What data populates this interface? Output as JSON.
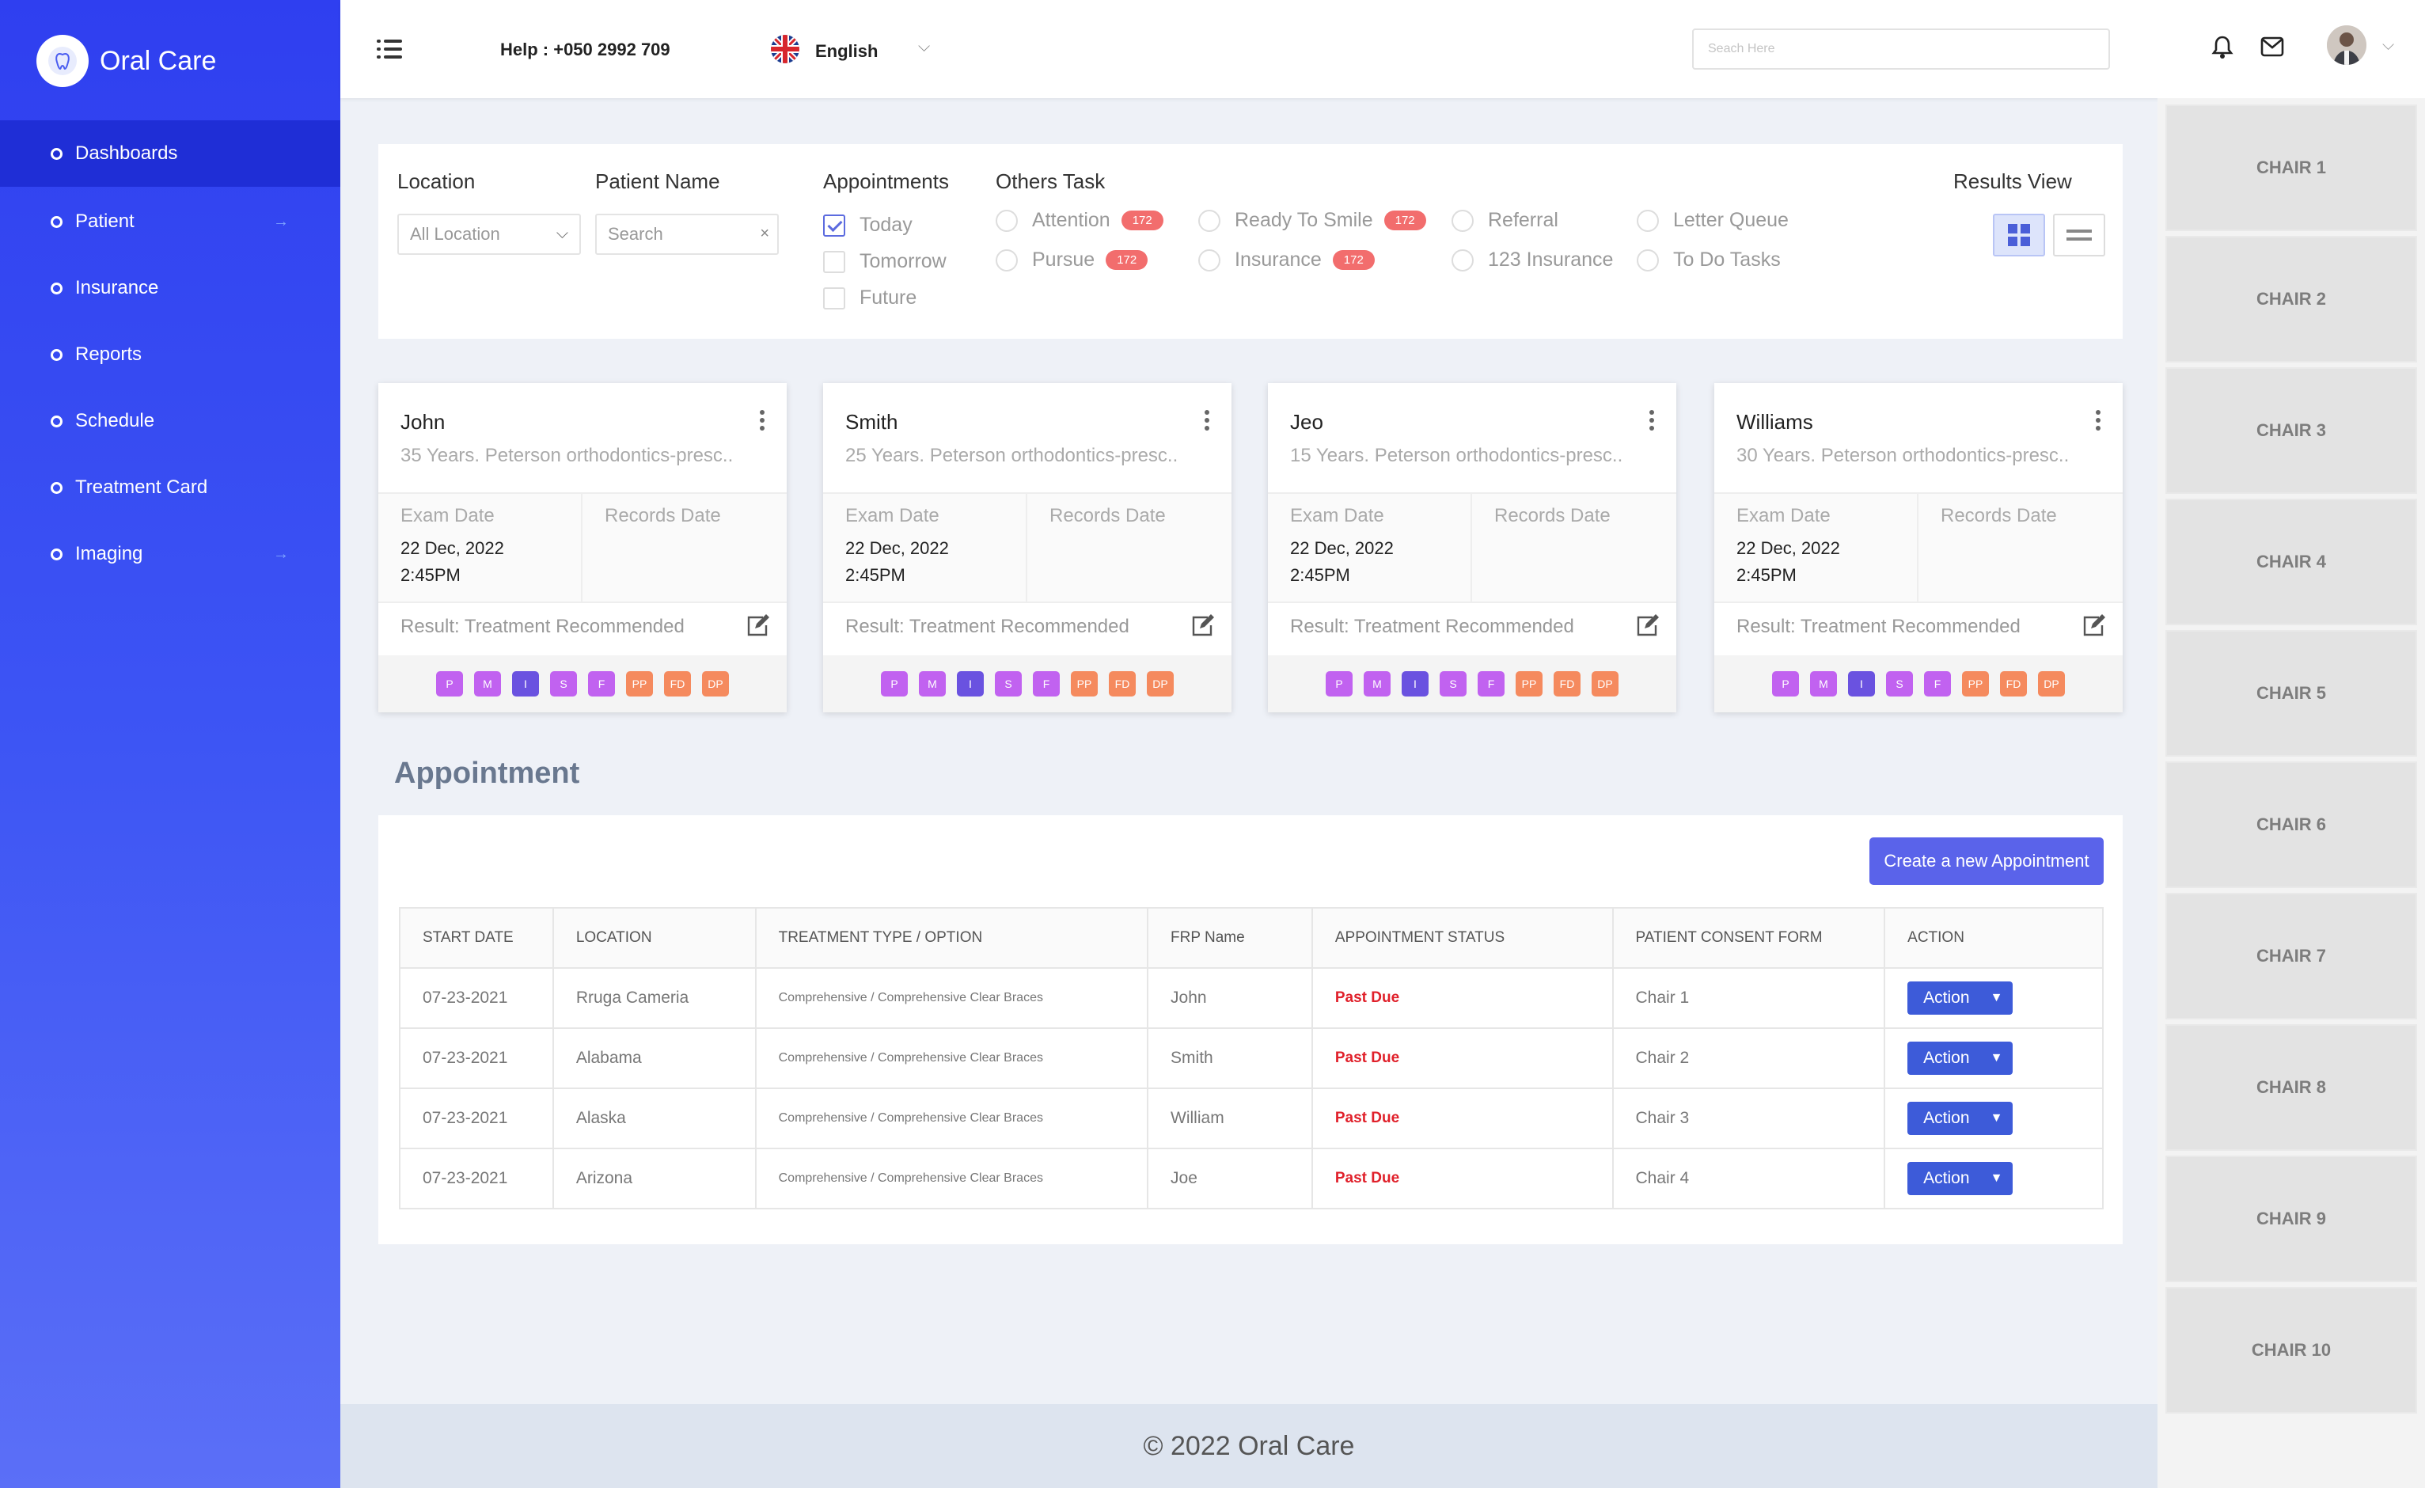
{
  "brand": {
    "name": "Oral Care"
  },
  "sidebar": {
    "items": [
      {
        "label": "Dashboards",
        "active": true
      },
      {
        "label": "Patient",
        "has_arrow": true
      },
      {
        "label": "Insurance"
      },
      {
        "label": "Reports"
      },
      {
        "label": "Schedule"
      },
      {
        "label": "Treatment Card"
      },
      {
        "label": "Imaging",
        "has_arrow": true
      }
    ]
  },
  "header": {
    "help": "Help : +050 2992 709",
    "language": "English",
    "search_placeholder": "Seach Here"
  },
  "filters": {
    "location_label": "Location",
    "location_value": "All Location",
    "patient_name_label": "Patient Name",
    "patient_name_placeholder": "Search",
    "appointments_label": "Appointments",
    "appointments": [
      {
        "label": "Today",
        "checked": true
      },
      {
        "label": "Tomorrow",
        "checked": false
      },
      {
        "label": "Future",
        "checked": false
      }
    ],
    "others_label": "Others Task",
    "others": [
      {
        "label": "Attention",
        "badge": "172"
      },
      {
        "label": "Pursue",
        "badge": "172"
      },
      {
        "label": "Ready To Smile",
        "badge": "172"
      },
      {
        "label": "Insurance",
        "badge": "172"
      },
      {
        "label": "Referral"
      },
      {
        "label": "123 Insurance"
      },
      {
        "label": "Letter Queue"
      },
      {
        "label": "To Do Tasks"
      }
    ],
    "results_view_label": "Results View",
    "results_view_selected": "grid"
  },
  "patients": [
    {
      "name": "John",
      "sub": "35 Years. Peterson orthodontics-presc..",
      "exam_label": "Exam Date",
      "exam_date": "22 Dec, 2022",
      "exam_time": "2:45PM",
      "records_label": "Records Date",
      "result": "Result: Treatment Recommended"
    },
    {
      "name": "Smith",
      "sub": "25 Years. Peterson orthodontics-presc..",
      "exam_label": "Exam Date",
      "exam_date": "22 Dec, 2022",
      "exam_time": "2:45PM",
      "records_label": "Records Date",
      "result": "Result: Treatment Recommended"
    },
    {
      "name": "Jeo",
      "sub": "15 Years. Peterson orthodontics-presc..",
      "exam_label": "Exam Date",
      "exam_date": "22 Dec, 2022",
      "exam_time": "2:45PM",
      "records_label": "Records Date",
      "result": "Result: Treatment Recommended"
    },
    {
      "name": "Williams",
      "sub": "30 Years. Peterson orthodontics-presc..",
      "exam_label": "Exam Date",
      "exam_date": "22 Dec, 2022",
      "exam_time": "2:45PM",
      "records_label": "Records Date",
      "result": "Result: Treatment Recommended"
    }
  ],
  "tags": [
    {
      "label": "P",
      "color": "#c162f0"
    },
    {
      "label": "M",
      "color": "#c162f0"
    },
    {
      "label": "I",
      "color": "#6a52e0"
    },
    {
      "label": "S",
      "color": "#c162f0"
    },
    {
      "label": "F",
      "color": "#c162f0"
    },
    {
      "label": "PP",
      "color": "#f58a5e"
    },
    {
      "label": "FD",
      "color": "#f58a5e"
    },
    {
      "label": "DP",
      "color": "#f58a5e"
    }
  ],
  "appointment": {
    "title": "Appointment",
    "create_label": "Create a new Appointment",
    "columns": [
      "START DATE",
      "LOCATION",
      "TREATMENT TYPE / OPTION",
      "FRP Name",
      "APPOINTMENT  STATUS",
      "PATIENT CONSENT FORM",
      "ACTION"
    ],
    "rows": [
      {
        "date": "07-23-2021",
        "location": "Rruga Cameria",
        "treatment": "Comprehensive / Comprehensive Clear Braces",
        "frp": "John",
        "status": "Past Due",
        "consent": "Chair 1",
        "action": "Action"
      },
      {
        "date": "07-23-2021",
        "location": "Alabama",
        "treatment": "Comprehensive / Comprehensive Clear Braces",
        "frp": "Smith",
        "status": "Past Due",
        "consent": "Chair 2",
        "action": "Action"
      },
      {
        "date": "07-23-2021",
        "location": "Alaska",
        "treatment": "Comprehensive / Comprehensive Clear Braces",
        "frp": "William",
        "status": "Past Due",
        "consent": "Chair 3",
        "action": "Action"
      },
      {
        "date": "07-23-2021",
        "location": "Arizona",
        "treatment": "Comprehensive / Comprehensive Clear Braces",
        "frp": "Joe",
        "status": "Past Due",
        "consent": "Chair 4",
        "action": "Action"
      }
    ]
  },
  "footer": {
    "text": "© 2022 Oral Care"
  },
  "chairs": [
    "CHAIR 1",
    "CHAIR 2",
    "CHAIR 3",
    "CHAIR 4",
    "CHAIR 5",
    "CHAIR 6",
    "CHAIR 7",
    "CHAIR 8",
    "CHAIR 9",
    "CHAIR 10"
  ]
}
